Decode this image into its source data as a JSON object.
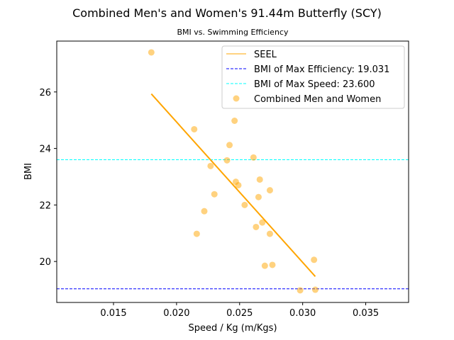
{
  "chart_data": {
    "type": "scatter",
    "title": "Combined Men's and Women's 91.44m Butterfly (SCY)",
    "subtitle": "BMI vs. Swimming Efficiency",
    "xlabel": "Speed / Kg (m/Kgs)",
    "ylabel": "BMI",
    "xlim": [
      0.0105,
      0.0384
    ],
    "ylim": [
      18.55,
      27.8
    ],
    "x_ticks": [
      0.015,
      0.02,
      0.025,
      0.03,
      0.035
    ],
    "x_tick_labels": [
      "0.015",
      "0.020",
      "0.025",
      "0.030",
      "0.035"
    ],
    "y_ticks": [
      20,
      22,
      24,
      26
    ],
    "y_tick_labels": [
      "20",
      "22",
      "24",
      "26"
    ],
    "grid": false,
    "legend_position": "top-right",
    "colors": {
      "points": "#ffa500",
      "seel": "#ffa500",
      "max_efficiency": "#0000ff",
      "max_speed": "#00ffff"
    },
    "series": [
      {
        "name": "Combined Men and Women",
        "kind": "scatter",
        "points": [
          [
            0.018,
            27.4
          ],
          [
            0.0214,
            24.68
          ],
          [
            0.0216,
            20.98
          ],
          [
            0.0222,
            21.78
          ],
          [
            0.0227,
            23.38
          ],
          [
            0.023,
            22.38
          ],
          [
            0.024,
            23.58
          ],
          [
            0.0242,
            24.12
          ],
          [
            0.0246,
            24.98
          ],
          [
            0.0247,
            22.82
          ],
          [
            0.0249,
            22.7
          ],
          [
            0.0254,
            22.0
          ],
          [
            0.0261,
            23.68
          ],
          [
            0.0263,
            21.22
          ],
          [
            0.0265,
            22.28
          ],
          [
            0.0266,
            22.9
          ],
          [
            0.0268,
            21.38
          ],
          [
            0.027,
            19.85
          ],
          [
            0.0274,
            22.52
          ],
          [
            0.0274,
            20.98
          ],
          [
            0.0276,
            19.88
          ],
          [
            0.0298,
            18.98
          ],
          [
            0.0309,
            20.06
          ],
          [
            0.031,
            19.0
          ]
        ]
      },
      {
        "name": "SEEL",
        "kind": "line",
        "points": [
          [
            0.018,
            25.93
          ],
          [
            0.031,
            19.47
          ]
        ]
      }
    ],
    "reference_lines": [
      {
        "name": "BMI of Max Efficiency: 19.031",
        "y": 19.031,
        "style": "dashed"
      },
      {
        "name": "BMI of Max Speed: 23.600",
        "y": 23.6,
        "style": "dashed"
      }
    ],
    "legend": [
      "SEEL",
      "BMI of Max Efficiency: 19.031",
      "BMI of Max Speed: 23.600",
      "Combined Men and Women"
    ]
  }
}
